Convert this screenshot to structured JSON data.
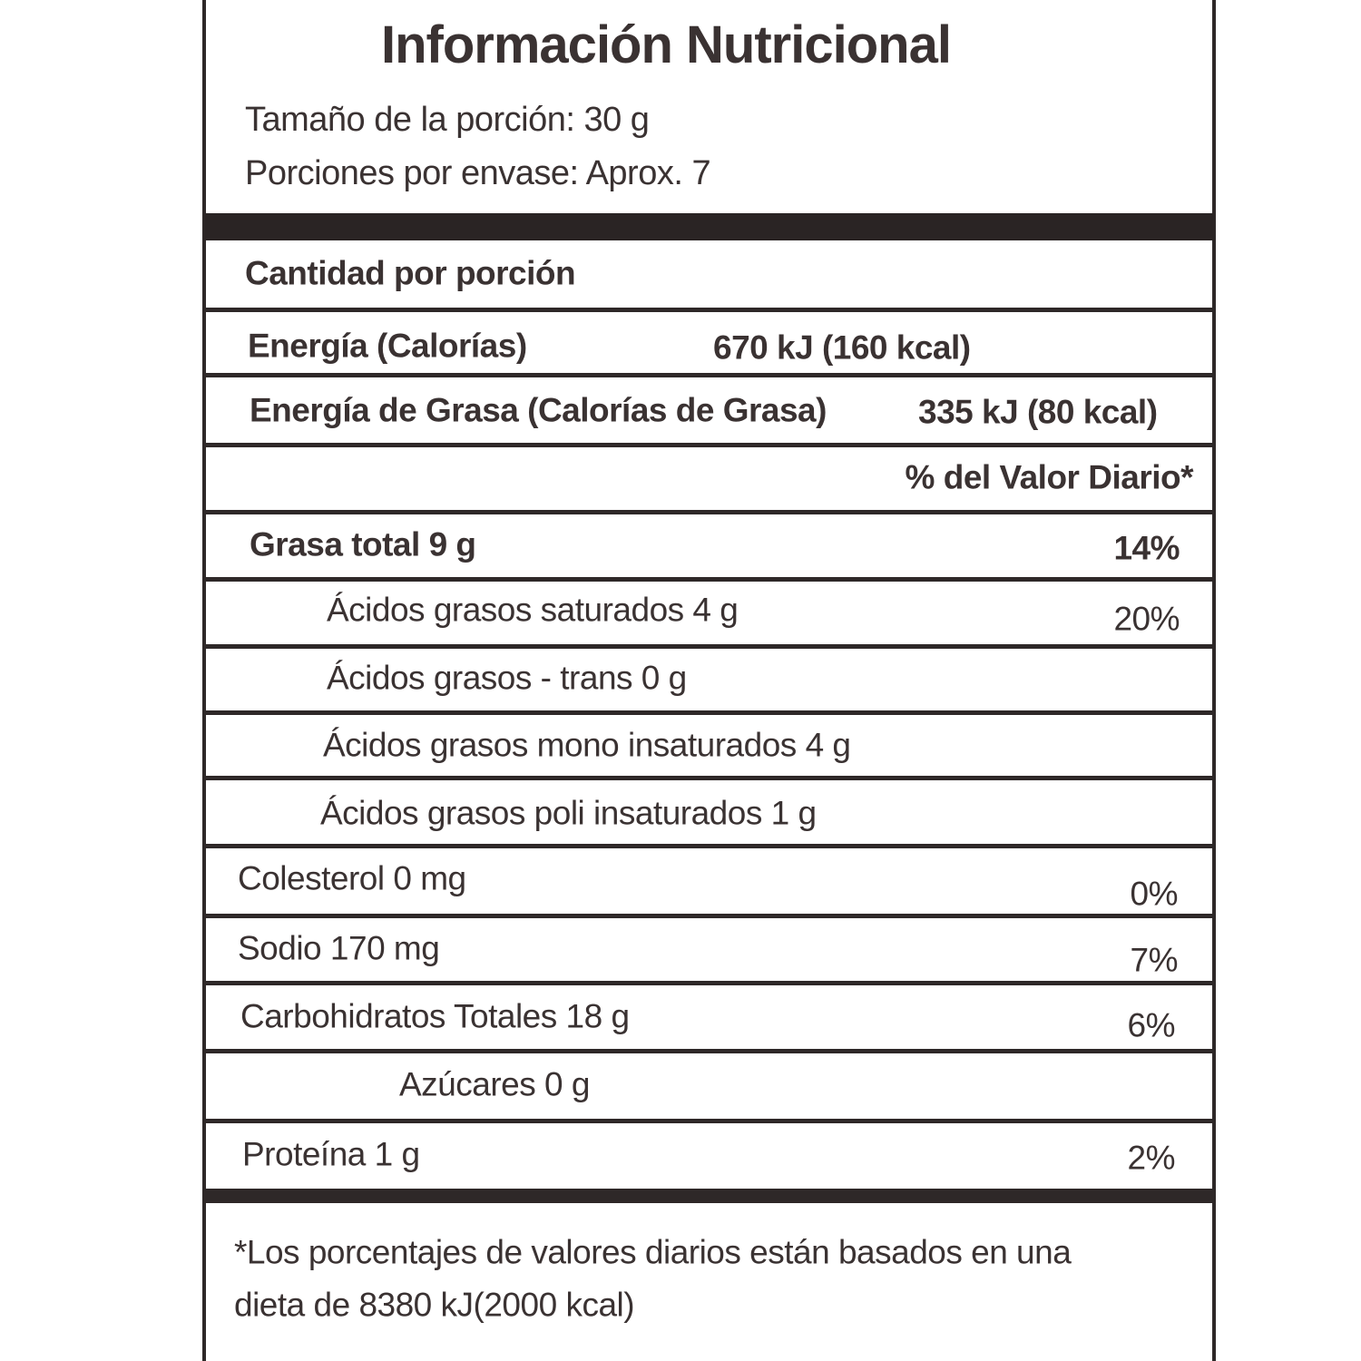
{
  "label": {
    "title": "Información Nutricional",
    "serving_size": "Tamaño de la porción: 30 g",
    "servings_per_container": "Porciones por envase: Aprox. 7",
    "amount_per_serving": "Cantidad por porción",
    "energy_label": "Energía (Calorías)",
    "energy_value": "670 kJ (160 kcal)",
    "fat_energy_label": "Energía de Grasa (Calorías de Grasa)",
    "fat_energy_value": "335 kJ (80 kcal)",
    "daily_value_header": "% del Valor Diario*",
    "nutrients": [
      {
        "label": "Grasa total 9 g",
        "dv": "14%"
      },
      {
        "label": "Ácidos grasos saturados 4 g",
        "dv": "20%"
      },
      {
        "label": "Ácidos grasos - trans 0 g",
        "dv": ""
      },
      {
        "label": "Ácidos grasos mono insaturados 4 g",
        "dv": ""
      },
      {
        "label": "Ácidos grasos poli insaturados 1 g",
        "dv": ""
      },
      {
        "label": "Colesterol 0 mg",
        "dv": "0%"
      },
      {
        "label": "Sodio 170 mg",
        "dv": "7%"
      },
      {
        "label": "Carbohidratos Totales 18 g",
        "dv": "6%"
      },
      {
        "label": "Azúcares 0 g",
        "dv": ""
      },
      {
        "label": "Proteína 1 g",
        "dv": "2%"
      }
    ],
    "footnote_line1": "*Los porcentajes de valores diarios están basados en una",
    "footnote_line2": "dieta de 8380 kJ(2000 kcal)"
  }
}
